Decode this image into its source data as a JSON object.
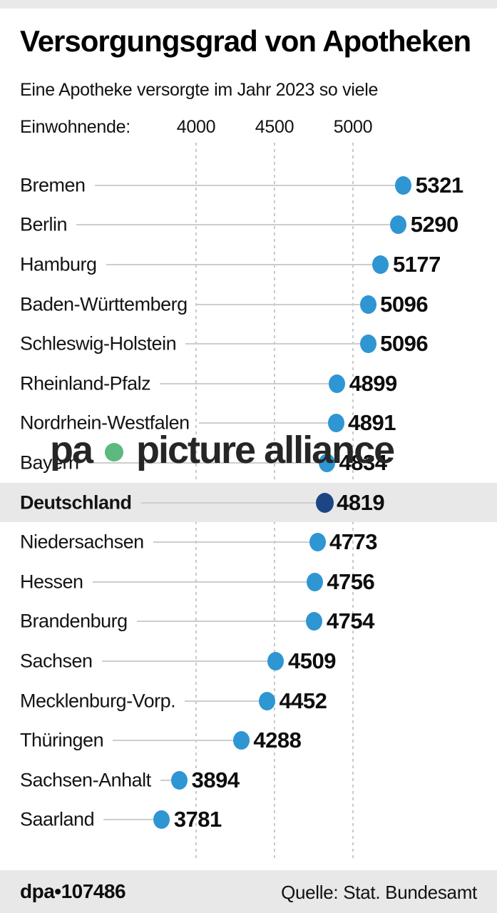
{
  "header": {
    "title": "Versorgungsgrad von Apotheken",
    "subtitle": "Eine Apotheke versorgte im Jahr 2023 so viele",
    "axis_caption": "Einwohnende:"
  },
  "chart_data": {
    "type": "scatter",
    "title": "Versorgungsgrad von Apotheken",
    "subtitle": "Eine Apotheke versorgte im Jahr 2023 so viele Einwohnende",
    "axis": {
      "ticks": [
        4000,
        4500,
        5000
      ],
      "tick_labels": [
        "4000",
        "4500",
        "5000"
      ],
      "grid": "dashed-vertical"
    },
    "rows": [
      {
        "label": "Bremen",
        "value": 5321,
        "highlight": false
      },
      {
        "label": "Berlin",
        "value": 5290,
        "highlight": false
      },
      {
        "label": "Hamburg",
        "value": 5177,
        "highlight": false
      },
      {
        "label": "Baden-Württemberg",
        "value": 5096,
        "highlight": false
      },
      {
        "label": "Schleswig-Holstein",
        "value": 5096,
        "highlight": false
      },
      {
        "label": "Rheinland-Pfalz",
        "value": 4899,
        "highlight": false
      },
      {
        "label": "Nordrhein-Westfalen",
        "value": 4891,
        "highlight": false
      },
      {
        "label": "Bayern",
        "value": 4834,
        "highlight": false
      },
      {
        "label": "Deutschland",
        "value": 4819,
        "highlight": true
      },
      {
        "label": "Niedersachsen",
        "value": 4773,
        "highlight": false
      },
      {
        "label": "Hessen",
        "value": 4756,
        "highlight": false
      },
      {
        "label": "Brandenburg",
        "value": 4754,
        "highlight": false
      },
      {
        "label": "Sachsen",
        "value": 4509,
        "highlight": false
      },
      {
        "label": "Mecklenburg-Vorp.",
        "value": 4452,
        "highlight": false
      },
      {
        "label": "Thüringen",
        "value": 4288,
        "highlight": false
      },
      {
        "label": "Sachsen-Anhalt",
        "value": 3894,
        "highlight": false
      },
      {
        "label": "Saarland",
        "value": 3781,
        "highlight": false
      }
    ]
  },
  "colors": {
    "dot": "#2e96d2",
    "highlight_dot": "#1c4586",
    "highlight_band": "#e8e8e8",
    "gridline": "#c9c9c9",
    "watermark_green": "#5cb97f"
  },
  "watermark": {
    "logo": "pa",
    "text": "picture alliance"
  },
  "footer": {
    "credit": "dpa•107486",
    "source": "Quelle: Stat. Bundesamt"
  }
}
